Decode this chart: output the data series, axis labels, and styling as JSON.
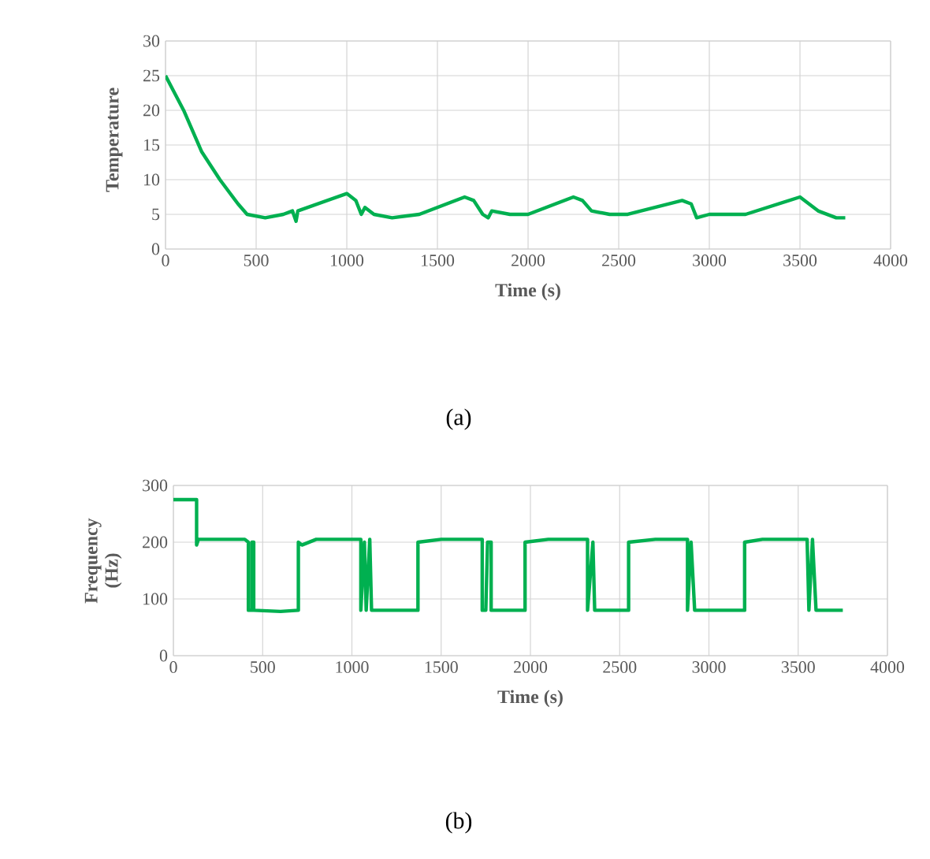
{
  "chart_data": [
    {
      "type": "line",
      "xlabel": "Time (s)",
      "ylabel": "Temperature",
      "annotations": [
        "(a)"
      ],
      "xlim": [
        0,
        4000
      ],
      "ylim": [
        0,
        30
      ],
      "xticks": [
        0,
        500,
        1000,
        1500,
        2000,
        2500,
        3000,
        3500,
        4000
      ],
      "yticks": [
        0,
        5,
        10,
        15,
        20,
        25,
        30
      ],
      "grid": true,
      "series": [
        {
          "color": "#00b050",
          "x": [
            0,
            100,
            200,
            300,
            400,
            450,
            550,
            650,
            700,
            720,
            730,
            1000,
            1050,
            1080,
            1100,
            1150,
            1250,
            1400,
            1650,
            1700,
            1750,
            1780,
            1800,
            1900,
            2000,
            2250,
            2300,
            2350,
            2450,
            2550,
            2850,
            2900,
            2930,
            3000,
            3100,
            3200,
            3500,
            3550,
            3600,
            3700,
            3750
          ],
          "values": [
            25,
            20,
            14,
            10,
            6.5,
            5,
            4.5,
            5,
            5.5,
            4,
            5.5,
            8,
            7,
            5,
            6,
            5,
            4.5,
            5,
            7.5,
            7,
            5,
            4.5,
            5.5,
            5,
            5,
            7.5,
            7,
            5.5,
            5,
            5,
            7,
            6.5,
            4.5,
            5,
            5,
            5,
            7.5,
            6.5,
            5.5,
            4.5,
            4.5
          ]
        }
      ]
    },
    {
      "type": "line",
      "xlabel": "Time (s)",
      "ylabel": "Frequency (Hz)",
      "annotations": [
        "(b)"
      ],
      "xlim": [
        0,
        4000
      ],
      "ylim": [
        0,
        300
      ],
      "xticks": [
        0,
        500,
        1000,
        1500,
        2000,
        2500,
        3000,
        3500,
        4000
      ],
      "yticks": [
        0,
        100,
        200,
        300
      ],
      "grid": true,
      "series": [
        {
          "color": "#00b050",
          "x": [
            0,
            130,
            130,
            140,
            400,
            420,
            420,
            440,
            440,
            450,
            450,
            600,
            700,
            700,
            720,
            800,
            1050,
            1050,
            1070,
            1080,
            1100,
            1110,
            1370,
            1370,
            1500,
            1730,
            1730,
            1750,
            1760,
            1780,
            1780,
            1970,
            1970,
            2100,
            2320,
            2320,
            2350,
            2360,
            2550,
            2550,
            2700,
            2880,
            2880,
            2900,
            2920,
            3200,
            3200,
            3300,
            3550,
            3560,
            3580,
            3600,
            3750
          ],
          "values": [
            275,
            275,
            195,
            205,
            205,
            200,
            80,
            80,
            200,
            200,
            80,
            78,
            80,
            200,
            195,
            205,
            205,
            80,
            200,
            80,
            205,
            80,
            80,
            200,
            205,
            205,
            80,
            80,
            200,
            200,
            80,
            80,
            200,
            205,
            205,
            80,
            200,
            80,
            80,
            200,
            205,
            205,
            80,
            200,
            80,
            80,
            200,
            205,
            205,
            80,
            205,
            80,
            80
          ]
        }
      ]
    }
  ]
}
